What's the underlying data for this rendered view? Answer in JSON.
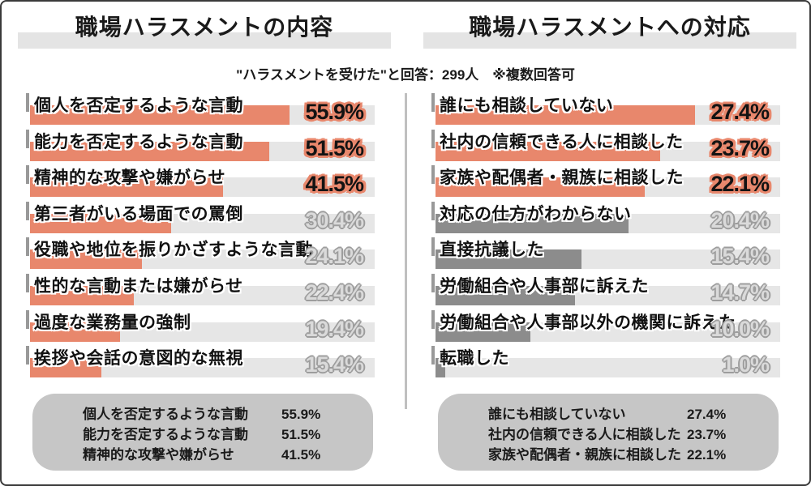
{
  "header": {
    "subtitle": "\"ハラスメントを受けた\"と回答：299人　※複数回答可"
  },
  "colors": {
    "accent": "#E8876C",
    "gray_bar": "#8C8C8C",
    "track": "#E6E6E6",
    "title_highlight": "#E4E4E4",
    "summary_bg": "#C6C6C6",
    "divider": "#C0C0C0",
    "tick": "#999999",
    "emphasized_value_text": "#131313",
    "dim_value_text": "#DADADA"
  },
  "chart_data": [
    {
      "type": "bar",
      "orientation": "horizontal",
      "title": "職場ハラスメントの内容",
      "categories": [
        "個人を否定するような言動",
        "能力を否定するような言動",
        "精神的な攻撃や嫌がらせ",
        "第三者がいる場面での罵倒",
        "役職や地位を振りかざすような言動",
        "性的な言動または嫌がらせ",
        "過度な業務量の強制",
        "挨拶や会話の意図的な無視"
      ],
      "values": [
        55.9,
        51.5,
        41.5,
        30.4,
        24.1,
        22.4,
        19.4,
        15.4
      ],
      "labels_display": [
        "55.9%",
        "51.5%",
        "41.5%",
        "30.4%",
        "24.1%",
        "22.4%",
        "19.4%",
        "15.4%"
      ],
      "emphasized_count": 3,
      "bar_colors": [
        "#E8876C",
        "#E8876C",
        "#E8876C",
        "#E8876C",
        "#E8876C",
        "#E8876C",
        "#E8876C",
        "#E8876C"
      ],
      "legend": "none",
      "grid": "off"
    },
    {
      "type": "bar",
      "orientation": "horizontal",
      "title": "職場ハラスメントへの対応",
      "categories": [
        "誰にも相談していない",
        "社内の信頼できる人に相談した",
        "家族や配偶者・親族に相談した",
        "対応の仕方がわからない",
        "直接抗議した",
        "労働組合や人事部に訴えた",
        "労働組合や人事部以外の機関に訴えた",
        "転職した"
      ],
      "values": [
        27.4,
        23.7,
        22.1,
        20.4,
        15.4,
        14.7,
        10.0,
        1.0
      ],
      "labels_display": [
        "27.4%",
        "23.7%",
        "22.1%",
        "20.4%",
        "15.4%",
        "14.7%",
        "10.0%",
        "1.0%"
      ],
      "emphasized_count": 3,
      "bar_colors": [
        "#E8876C",
        "#E8876C",
        "#E8876C",
        "#8C8C8C",
        "#8C8C8C",
        "#8C8C8C",
        "#8C8C8C",
        "#8C8C8C"
      ],
      "legend": "none",
      "grid": "off"
    }
  ]
}
